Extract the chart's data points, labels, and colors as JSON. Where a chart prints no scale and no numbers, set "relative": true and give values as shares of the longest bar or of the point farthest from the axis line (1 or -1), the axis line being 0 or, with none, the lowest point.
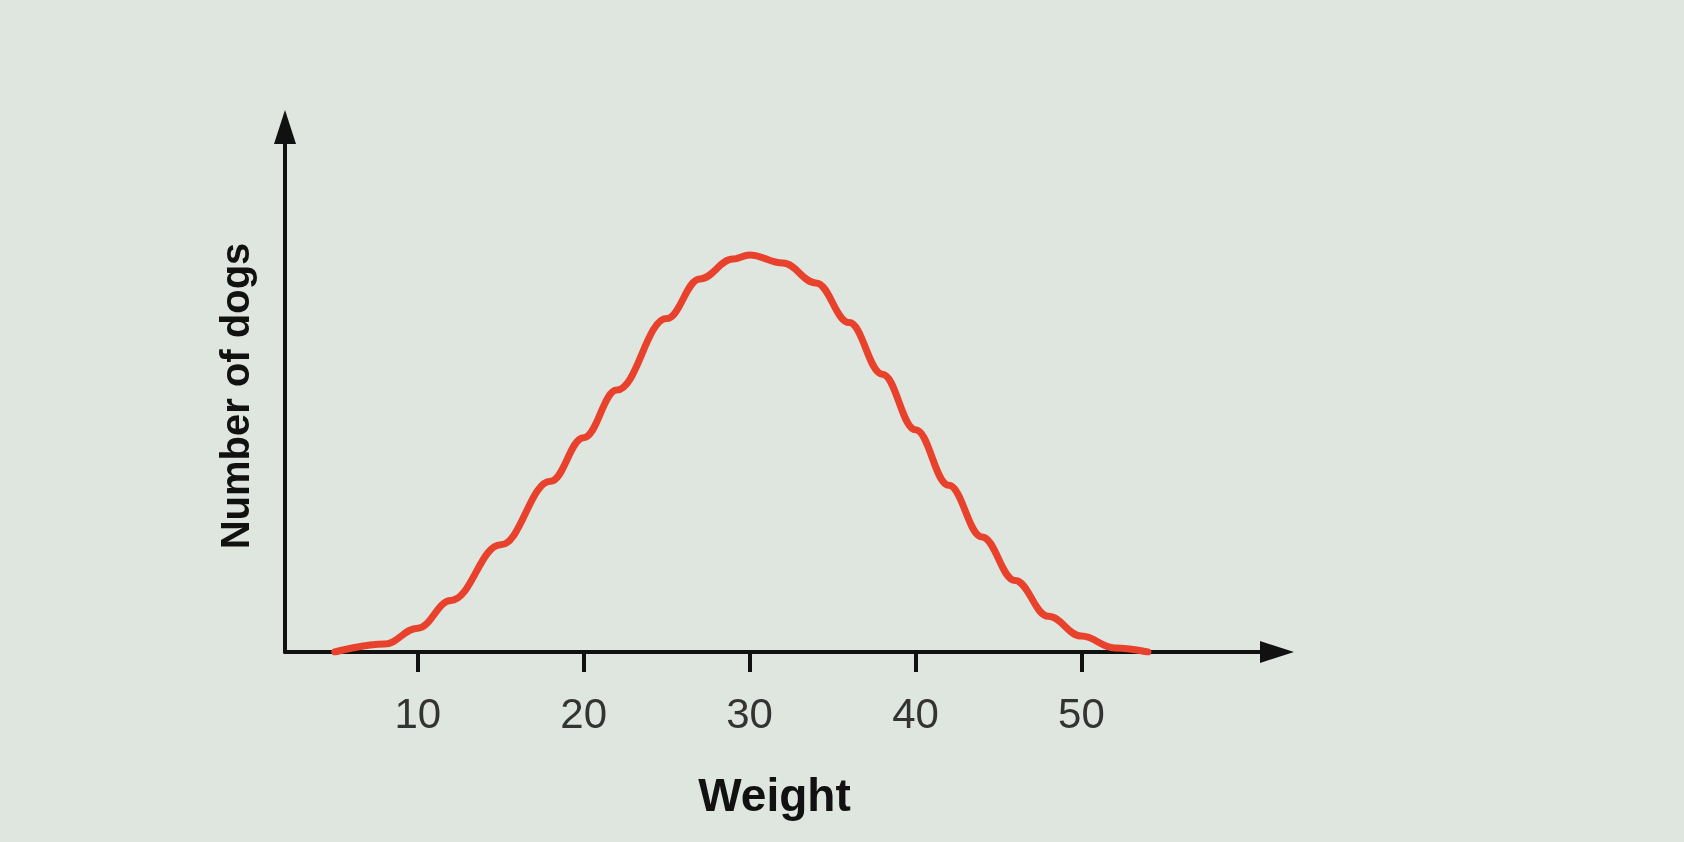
{
  "chart_data": {
    "type": "line",
    "relative": true,
    "xlabel": "Weight",
    "ylabel": "Number of dogs",
    "xlim": [
      2,
      61
    ],
    "xticks": [
      10,
      20,
      30,
      40,
      50
    ],
    "grid": false,
    "marker": "none",
    "line_style": "solid",
    "series": [
      {
        "color": "#e8412c",
        "x": [
          5,
          8,
          10,
          12,
          15,
          18,
          20,
          22,
          25,
          27,
          29,
          30,
          32,
          34,
          36,
          38,
          40,
          42,
          44,
          46,
          48,
          50,
          52,
          54
        ],
        "values": [
          0,
          0.02,
          0.06,
          0.13,
          0.27,
          0.43,
          0.54,
          0.66,
          0.84,
          0.94,
          0.99,
          1,
          0.98,
          0.93,
          0.83,
          0.7,
          0.56,
          0.42,
          0.29,
          0.18,
          0.09,
          0.04,
          0.01,
          0
        ]
      }
    ]
  }
}
